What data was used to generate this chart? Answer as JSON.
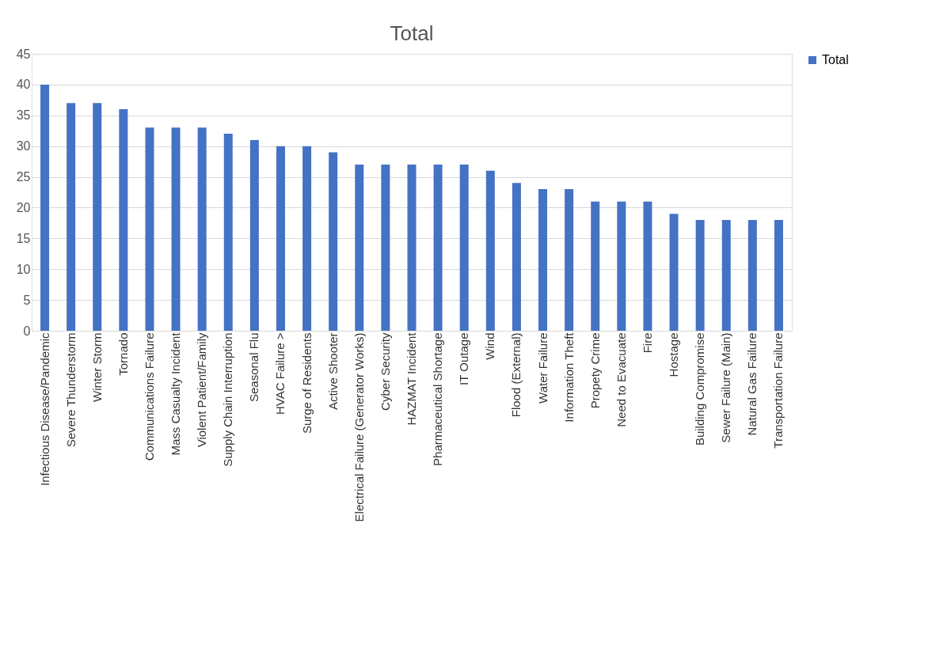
{
  "chart_data": {
    "type": "bar",
    "title": "Total",
    "categories": [
      "Infectious Disease/Pandemic",
      "Severe Thunderstorm",
      "Winter Storm",
      "Tornado",
      "Communications Failure",
      "Mass Casualty Incident",
      "Violent Patient/Family",
      "Supply Chain Interruption",
      "Seasonal Flu",
      "HVAC Failure >",
      "Surge of Residents",
      "Active Shooter",
      "Electrical Failure (Generator Works)",
      "Cyber Security",
      "HAZMAT Incident",
      "Pharmaceutical Shortage",
      "IT Outage",
      "Wind",
      "Flood (External)",
      "Water Failure",
      "Information Theft",
      "Propety Crime",
      "Need to Evacuate",
      "Fire",
      "Hostage",
      "Building Compromise",
      "Sewer Failure (Main)",
      "Natural Gas Failure",
      "Transportation Failure"
    ],
    "series": [
      {
        "name": "Total",
        "color": "#4472c4",
        "values": [
          40,
          37,
          37,
          36,
          33,
          33,
          33,
          32,
          31,
          30,
          30,
          29,
          27,
          27,
          27,
          27,
          27,
          26,
          24,
          23,
          23,
          21,
          21,
          21,
          19,
          18,
          18,
          18,
          18
        ]
      }
    ],
    "ylim": [
      0,
      45
    ],
    "yticks": [
      0,
      5,
      10,
      15,
      20,
      25,
      30,
      35,
      40,
      45
    ],
    "grid": "y",
    "legend": "right"
  }
}
